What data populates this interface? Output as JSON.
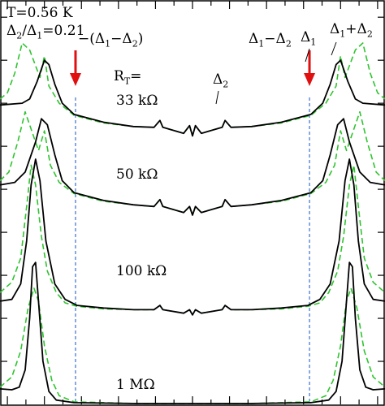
{
  "chart_data": {
    "type": "line",
    "title": "",
    "xlabel": "",
    "ylabel": "",
    "xlim": [
      -1.3,
      1.3
    ],
    "ylim": [
      0,
      4.7
    ],
    "grid": false,
    "params": {
      "temperature_label": "T=0.56 K",
      "ratio_label": "Δ2/Δ1=0.21"
    },
    "legend": [
      {
        "name": "",
        "style": "solid",
        "color": "#000000"
      },
      {
        "name": "",
        "style": "dashed",
        "color": "#2fc42f"
      }
    ],
    "reference_lines": {
      "color": "#3a6fcc",
      "x": [
        -0.79,
        0.79
      ],
      "labels": [
        "−(Δ1−Δ2)",
        "Δ1−Δ2"
      ]
    },
    "feature_labels": [
      {
        "text": "Δ2",
        "x": 0.21
      },
      {
        "text": "Δ1",
        "x": 1.0
      },
      {
        "text": "Δ1+Δ2",
        "x": 1.21
      }
    ],
    "resistance_header": "RT=",
    "series": [
      {
        "name": "33 kΩ",
        "offset": 3.0,
        "solid": [
          [
            -1.3,
            0.48
          ],
          [
            -1.15,
            0.5
          ],
          [
            -1.1,
            0.55
          ],
          [
            -1.05,
            0.75
          ],
          [
            -1.0,
            1.0
          ],
          [
            -0.97,
            0.95
          ],
          [
            -0.93,
            0.72
          ],
          [
            -0.88,
            0.5
          ],
          [
            -0.8,
            0.37
          ],
          [
            -0.6,
            0.28
          ],
          [
            -0.4,
            0.23
          ],
          [
            -0.26,
            0.22
          ],
          [
            -0.22,
            0.3
          ],
          [
            -0.2,
            0.22
          ],
          [
            -0.06,
            0.15
          ],
          [
            -0.02,
            0.24
          ],
          [
            0.0,
            0.12
          ],
          [
            0.02,
            0.24
          ],
          [
            0.06,
            0.15
          ],
          [
            0.2,
            0.22
          ],
          [
            0.22,
            0.3
          ],
          [
            0.26,
            0.22
          ],
          [
            0.4,
            0.23
          ],
          [
            0.6,
            0.28
          ],
          [
            0.8,
            0.37
          ],
          [
            0.88,
            0.5
          ],
          [
            0.93,
            0.72
          ],
          [
            0.97,
            0.95
          ],
          [
            1.0,
            1.0
          ],
          [
            1.05,
            0.75
          ],
          [
            1.1,
            0.55
          ],
          [
            1.15,
            0.5
          ],
          [
            1.3,
            0.48
          ]
        ],
        "dashed": [
          [
            -1.3,
            0.55
          ],
          [
            -1.25,
            0.62
          ],
          [
            -1.2,
            0.85
          ],
          [
            -1.15,
            1.2
          ],
          [
            -1.1,
            1.12
          ],
          [
            -1.03,
            0.8
          ],
          [
            -1.0,
            1.05
          ],
          [
            -0.97,
            0.7
          ],
          [
            -0.9,
            0.5
          ],
          [
            -0.8,
            0.36
          ],
          [
            -0.6,
            0.27
          ],
          [
            -0.4,
            0.23
          ],
          [
            -0.26,
            0.22
          ],
          [
            -0.22,
            0.3
          ],
          [
            -0.2,
            0.22
          ],
          [
            -0.06,
            0.15
          ],
          [
            -0.02,
            0.24
          ],
          [
            0.0,
            0.12
          ],
          [
            0.02,
            0.24
          ],
          [
            0.06,
            0.15
          ],
          [
            0.2,
            0.22
          ],
          [
            0.22,
            0.3
          ],
          [
            0.26,
            0.22
          ],
          [
            0.4,
            0.23
          ],
          [
            0.6,
            0.27
          ],
          [
            0.8,
            0.36
          ],
          [
            0.9,
            0.5
          ],
          [
            0.97,
            0.7
          ],
          [
            1.0,
            1.05
          ],
          [
            1.03,
            0.8
          ],
          [
            1.1,
            1.12
          ],
          [
            1.15,
            1.2
          ],
          [
            1.2,
            0.85
          ],
          [
            1.25,
            0.62
          ],
          [
            1.3,
            0.55
          ]
        ]
      },
      {
        "name": "50 kΩ",
        "offset": 2.1,
        "solid": [
          [
            -1.3,
            0.45
          ],
          [
            -1.2,
            0.48
          ],
          [
            -1.13,
            0.6
          ],
          [
            -1.06,
            0.95
          ],
          [
            -1.02,
            1.22
          ],
          [
            -0.98,
            1.15
          ],
          [
            -0.93,
            0.8
          ],
          [
            -0.88,
            0.5
          ],
          [
            -0.8,
            0.36
          ],
          [
            -0.6,
            0.27
          ],
          [
            -0.4,
            0.22
          ],
          [
            -0.26,
            0.2
          ],
          [
            -0.22,
            0.28
          ],
          [
            -0.2,
            0.2
          ],
          [
            -0.06,
            0.13
          ],
          [
            -0.02,
            0.2
          ],
          [
            0.0,
            0.1
          ],
          [
            0.02,
            0.2
          ],
          [
            0.06,
            0.13
          ],
          [
            0.2,
            0.2
          ],
          [
            0.22,
            0.28
          ],
          [
            0.26,
            0.2
          ],
          [
            0.4,
            0.22
          ],
          [
            0.6,
            0.27
          ],
          [
            0.8,
            0.36
          ],
          [
            0.88,
            0.5
          ],
          [
            0.93,
            0.8
          ],
          [
            0.98,
            1.15
          ],
          [
            1.02,
            1.22
          ],
          [
            1.06,
            0.95
          ],
          [
            1.13,
            0.6
          ],
          [
            1.2,
            0.48
          ],
          [
            1.3,
            0.45
          ]
        ],
        "dashed": [
          [
            -1.3,
            0.5
          ],
          [
            -1.24,
            0.6
          ],
          [
            -1.18,
            0.95
          ],
          [
            -1.13,
            1.3
          ],
          [
            -1.08,
            1.05
          ],
          [
            -1.04,
            0.85
          ],
          [
            -1.0,
            1.08
          ],
          [
            -0.96,
            0.68
          ],
          [
            -0.9,
            0.48
          ],
          [
            -0.8,
            0.35
          ],
          [
            -0.6,
            0.26
          ],
          [
            -0.4,
            0.22
          ],
          [
            -0.26,
            0.2
          ],
          [
            -0.22,
            0.28
          ],
          [
            -0.2,
            0.2
          ],
          [
            -0.06,
            0.13
          ],
          [
            -0.02,
            0.2
          ],
          [
            0.0,
            0.1
          ],
          [
            0.02,
            0.2
          ],
          [
            0.06,
            0.13
          ],
          [
            0.2,
            0.2
          ],
          [
            0.22,
            0.28
          ],
          [
            0.26,
            0.2
          ],
          [
            0.4,
            0.22
          ],
          [
            0.6,
            0.26
          ],
          [
            0.8,
            0.35
          ],
          [
            0.9,
            0.48
          ],
          [
            0.96,
            0.68
          ],
          [
            1.0,
            1.08
          ],
          [
            1.04,
            0.85
          ],
          [
            1.08,
            1.05
          ],
          [
            1.13,
            1.3
          ],
          [
            1.18,
            0.95
          ],
          [
            1.24,
            0.6
          ],
          [
            1.3,
            0.5
          ]
        ]
      },
      {
        "name": "100 kΩ",
        "offset": 1.0,
        "solid": [
          [
            -1.3,
            0.2
          ],
          [
            -1.22,
            0.22
          ],
          [
            -1.16,
            0.4
          ],
          [
            -1.12,
            0.9
          ],
          [
            -1.09,
            1.55
          ],
          [
            -1.06,
            1.85
          ],
          [
            -1.03,
            1.6
          ],
          [
            -0.99,
            0.9
          ],
          [
            -0.93,
            0.4
          ],
          [
            -0.86,
            0.22
          ],
          [
            -0.78,
            0.15
          ],
          [
            -0.6,
            0.12
          ],
          [
            -0.4,
            0.1
          ],
          [
            -0.26,
            0.1
          ],
          [
            -0.22,
            0.15
          ],
          [
            -0.2,
            0.1
          ],
          [
            -0.06,
            0.06
          ],
          [
            -0.02,
            0.1
          ],
          [
            0.0,
            0.04
          ],
          [
            0.02,
            0.1
          ],
          [
            0.06,
            0.06
          ],
          [
            0.2,
            0.1
          ],
          [
            0.22,
            0.15
          ],
          [
            0.26,
            0.1
          ],
          [
            0.4,
            0.1
          ],
          [
            0.6,
            0.12
          ],
          [
            0.78,
            0.15
          ],
          [
            0.86,
            0.22
          ],
          [
            0.93,
            0.4
          ],
          [
            0.99,
            0.9
          ],
          [
            1.03,
            1.6
          ],
          [
            1.06,
            1.85
          ],
          [
            1.09,
            1.55
          ],
          [
            1.12,
            0.9
          ],
          [
            1.16,
            0.4
          ],
          [
            1.22,
            0.22
          ],
          [
            1.3,
            0.2
          ]
        ],
        "dashed": [
          [
            -1.3,
            0.3
          ],
          [
            -1.22,
            0.42
          ],
          [
            -1.16,
            0.7
          ],
          [
            -1.12,
            1.3
          ],
          [
            -1.09,
            1.78
          ],
          [
            -1.06,
            1.55
          ],
          [
            -1.02,
            0.95
          ],
          [
            -0.98,
            0.55
          ],
          [
            -0.92,
            0.3
          ],
          [
            -0.86,
            0.18
          ],
          [
            -0.78,
            0.14
          ],
          [
            -0.6,
            0.11
          ],
          [
            -0.4,
            0.1
          ],
          [
            -0.26,
            0.1
          ],
          [
            -0.22,
            0.15
          ],
          [
            -0.2,
            0.1
          ],
          [
            -0.06,
            0.06
          ],
          [
            -0.02,
            0.1
          ],
          [
            0.0,
            0.04
          ],
          [
            0.02,
            0.1
          ],
          [
            0.06,
            0.06
          ],
          [
            0.2,
            0.1
          ],
          [
            0.22,
            0.15
          ],
          [
            0.26,
            0.1
          ],
          [
            0.4,
            0.1
          ],
          [
            0.6,
            0.11
          ],
          [
            0.78,
            0.14
          ],
          [
            0.86,
            0.18
          ],
          [
            0.92,
            0.3
          ],
          [
            0.98,
            0.55
          ],
          [
            1.02,
            0.95
          ],
          [
            1.06,
            1.55
          ],
          [
            1.09,
            1.78
          ],
          [
            1.12,
            1.3
          ],
          [
            1.16,
            0.7
          ],
          [
            1.22,
            0.42
          ],
          [
            1.3,
            0.3
          ]
        ]
      },
      {
        "name": "1 MΩ",
        "offset": 0.0,
        "solid": [
          [
            -1.3,
            0.18
          ],
          [
            -1.22,
            0.17
          ],
          [
            -1.17,
            0.2
          ],
          [
            -1.13,
            0.4
          ],
          [
            -1.1,
            1.0
          ],
          [
            -1.08,
            1.6
          ],
          [
            -1.06,
            1.65
          ],
          [
            -1.04,
            1.2
          ],
          [
            -1.01,
            0.5
          ],
          [
            -0.97,
            0.15
          ],
          [
            -0.92,
            0.05
          ],
          [
            -0.8,
            0.02
          ],
          [
            -0.4,
            0.01
          ],
          [
            0.0,
            0.01
          ],
          [
            0.4,
            0.01
          ],
          [
            0.8,
            0.02
          ],
          [
            0.92,
            0.05
          ],
          [
            0.97,
            0.15
          ],
          [
            1.01,
            0.5
          ],
          [
            1.04,
            1.2
          ],
          [
            1.06,
            1.65
          ],
          [
            1.08,
            1.6
          ],
          [
            1.1,
            1.0
          ],
          [
            1.13,
            0.4
          ],
          [
            1.17,
            0.2
          ],
          [
            1.22,
            0.17
          ],
          [
            1.3,
            0.18
          ]
        ],
        "dashed": [
          [
            -1.3,
            0.2
          ],
          [
            -1.22,
            0.32
          ],
          [
            -1.16,
            0.62
          ],
          [
            -1.11,
            1.12
          ],
          [
            -1.07,
            1.35
          ],
          [
            -1.04,
            1.2
          ],
          [
            -1.0,
            0.68
          ],
          [
            -0.95,
            0.28
          ],
          [
            -0.9,
            0.1
          ],
          [
            -0.8,
            0.03
          ],
          [
            -0.4,
            0.01
          ],
          [
            0.0,
            0.01
          ],
          [
            0.4,
            0.01
          ],
          [
            0.8,
            0.03
          ],
          [
            0.9,
            0.1
          ],
          [
            0.95,
            0.28
          ],
          [
            1.0,
            0.68
          ],
          [
            1.04,
            1.2
          ],
          [
            1.07,
            1.35
          ],
          [
            1.11,
            1.12
          ],
          [
            1.16,
            0.62
          ],
          [
            1.22,
            0.32
          ],
          [
            1.3,
            0.2
          ]
        ]
      }
    ]
  }
}
